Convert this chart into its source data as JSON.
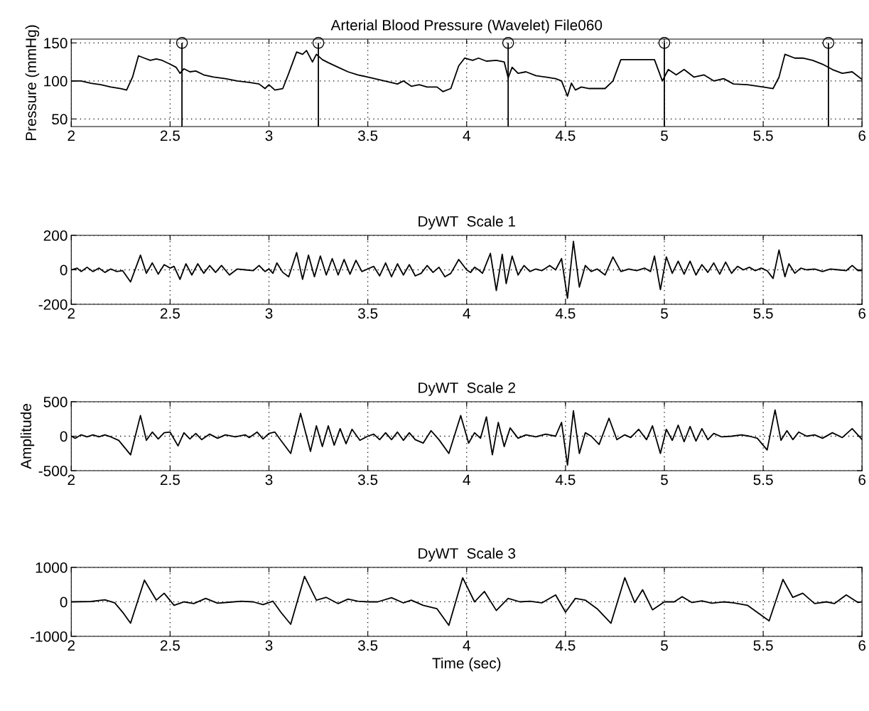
{
  "chart_data": [
    {
      "type": "line",
      "title": "Arterial Blood Pressure (Wavelet) File060",
      "ylabel": "Pressure (mmHg)",
      "xlim": [
        2,
        6
      ],
      "xticks": [
        2,
        2.5,
        3,
        3.5,
        4,
        4.5,
        5,
        5.5,
        6
      ],
      "ylim": [
        40,
        155
      ],
      "yticks": [
        50,
        100,
        150
      ],
      "grid": true,
      "legend": false,
      "series": [
        {
          "color": "#000000",
          "x": [
            2.0,
            2.05,
            2.1,
            2.15,
            2.2,
            2.25,
            2.28,
            2.31,
            2.34,
            2.37,
            2.4,
            2.43,
            2.46,
            2.5,
            2.53,
            2.55,
            2.57,
            2.6,
            2.63,
            2.67,
            2.72,
            2.78,
            2.84,
            2.9,
            2.95,
            2.98,
            3.0,
            3.03,
            3.07,
            3.1,
            3.14,
            3.17,
            3.19,
            3.22,
            3.24,
            3.27,
            3.3,
            3.35,
            3.4,
            3.45,
            3.5,
            3.55,
            3.6,
            3.65,
            3.68,
            3.72,
            3.76,
            3.8,
            3.85,
            3.88,
            3.92,
            3.96,
            3.99,
            4.03,
            4.06,
            4.1,
            4.15,
            4.19,
            4.21,
            4.23,
            4.26,
            4.3,
            4.35,
            4.4,
            4.45,
            4.48,
            4.51,
            4.53,
            4.55,
            4.58,
            4.62,
            4.7,
            4.74,
            4.78,
            4.85,
            4.95,
            4.99,
            5.02,
            5.06,
            5.1,
            5.15,
            5.2,
            5.25,
            5.3,
            5.35,
            5.42,
            5.5,
            5.55,
            5.58,
            5.61,
            5.66,
            5.7,
            5.75,
            5.8,
            5.85,
            5.9,
            5.95,
            6.0
          ],
          "values": [
            100,
            100,
            97,
            95,
            92,
            90,
            88,
            105,
            133,
            130,
            127,
            129,
            127,
            122,
            118,
            110,
            116,
            112,
            113,
            108,
            105,
            103,
            100,
            98,
            96,
            90,
            95,
            88,
            90,
            110,
            138,
            135,
            140,
            125,
            135,
            128,
            124,
            118,
            112,
            108,
            105,
            102,
            99,
            96,
            100,
            93,
            95,
            92,
            92,
            86,
            90,
            120,
            130,
            127,
            130,
            126,
            127,
            125,
            104,
            118,
            110,
            112,
            107,
            105,
            103,
            100,
            80,
            97,
            88,
            92,
            90,
            90,
            100,
            128,
            128,
            128,
            100,
            115,
            108,
            115,
            105,
            108,
            100,
            103,
            96,
            95,
            92,
            90,
            105,
            135,
            130,
            130,
            127,
            122,
            115,
            110,
            112,
            102
          ]
        },
        {
          "type": "lollipop",
          "color": "#000000",
          "marker": "circle",
          "x": [
            2.56,
            3.25,
            4.21,
            5.0,
            5.83
          ],
          "values": [
            150,
            150,
            150,
            150,
            150
          ]
        }
      ]
    },
    {
      "type": "line",
      "title": "DyWT  Scale 1",
      "xlim": [
        2,
        6
      ],
      "xticks": [
        2,
        2.5,
        3,
        3.5,
        4,
        4.5,
        5,
        5.5,
        6
      ],
      "ylim": [
        -200,
        200
      ],
      "yticks": [
        -200,
        0,
        200
      ],
      "grid": true,
      "legend": false,
      "series": [
        {
          "color": "#000000",
          "x": [
            2.0,
            2.03,
            2.05,
            2.08,
            2.11,
            2.14,
            2.17,
            2.2,
            2.23,
            2.26,
            2.3,
            2.35,
            2.38,
            2.41,
            2.44,
            2.47,
            2.5,
            2.52,
            2.55,
            2.58,
            2.61,
            2.64,
            2.67,
            2.7,
            2.73,
            2.76,
            2.8,
            2.84,
            2.88,
            2.92,
            2.95,
            2.98,
            3.0,
            3.02,
            3.04,
            3.07,
            3.1,
            3.14,
            3.17,
            3.2,
            3.23,
            3.26,
            3.29,
            3.32,
            3.35,
            3.38,
            3.41,
            3.44,
            3.47,
            3.5,
            3.53,
            3.56,
            3.59,
            3.62,
            3.65,
            3.68,
            3.71,
            3.74,
            3.77,
            3.8,
            3.83,
            3.86,
            3.89,
            3.92,
            3.96,
            4.0,
            4.02,
            4.04,
            4.06,
            4.08,
            4.12,
            4.15,
            4.18,
            4.2,
            4.23,
            4.26,
            4.29,
            4.32,
            4.35,
            4.38,
            4.42,
            4.45,
            4.48,
            4.51,
            4.54,
            4.57,
            4.6,
            4.63,
            4.66,
            4.7,
            4.74,
            4.78,
            4.82,
            4.86,
            4.9,
            4.93,
            4.95,
            4.98,
            5.01,
            5.04,
            5.07,
            5.1,
            5.13,
            5.16,
            5.19,
            5.22,
            5.25,
            5.28,
            5.31,
            5.34,
            5.37,
            5.4,
            5.43,
            5.46,
            5.49,
            5.52,
            5.55,
            5.58,
            5.61,
            5.63,
            5.66,
            5.69,
            5.72,
            5.76,
            5.8,
            5.84,
            5.88,
            5.92,
            5.95,
            5.98,
            6.0
          ],
          "values": [
            0,
            10,
            -10,
            15,
            -10,
            10,
            -15,
            5,
            -10,
            -5,
            -70,
            85,
            -20,
            40,
            -25,
            30,
            10,
            20,
            -55,
            35,
            -30,
            35,
            -20,
            25,
            -15,
            25,
            -30,
            5,
            0,
            -5,
            25,
            -10,
            5,
            -20,
            40,
            -15,
            -40,
            100,
            -55,
            85,
            -40,
            80,
            -30,
            65,
            -30,
            60,
            -25,
            55,
            -10,
            5,
            20,
            -35,
            40,
            -40,
            35,
            -30,
            30,
            -35,
            -20,
            25,
            -15,
            15,
            -40,
            -20,
            60,
            0,
            -15,
            15,
            0,
            -20,
            95,
            -120,
            90,
            -80,
            80,
            -30,
            25,
            -10,
            5,
            -5,
            25,
            0,
            65,
            -165,
            165,
            -100,
            25,
            -10,
            5,
            -30,
            75,
            -10,
            5,
            -5,
            10,
            -10,
            80,
            -115,
            75,
            -20,
            50,
            -25,
            50,
            -30,
            30,
            -15,
            40,
            -25,
            45,
            -20,
            20,
            0,
            15,
            -5,
            10,
            -5,
            -50,
            115,
            -40,
            35,
            -20,
            10,
            0,
            5,
            -10,
            5,
            0,
            -5,
            25,
            -5,
            -5
          ]
        }
      ]
    },
    {
      "type": "line",
      "title": "DyWT  Scale 2",
      "ylabel": "Amplitude",
      "xlim": [
        2,
        6
      ],
      "xticks": [
        2,
        2.5,
        3,
        3.5,
        4,
        4.5,
        5,
        5.5,
        6
      ],
      "ylim": [
        -500,
        500
      ],
      "yticks": [
        -500,
        0,
        500
      ],
      "grid": true,
      "legend": false,
      "series": [
        {
          "color": "#000000",
          "x": [
            2.0,
            2.02,
            2.05,
            2.08,
            2.11,
            2.14,
            2.17,
            2.2,
            2.24,
            2.3,
            2.35,
            2.38,
            2.41,
            2.44,
            2.47,
            2.5,
            2.54,
            2.57,
            2.6,
            2.63,
            2.66,
            2.7,
            2.74,
            2.78,
            2.83,
            2.88,
            2.9,
            2.94,
            2.97,
            3.0,
            3.03,
            3.06,
            3.11,
            3.16,
            3.21,
            3.24,
            3.27,
            3.3,
            3.33,
            3.36,
            3.39,
            3.42,
            3.46,
            3.5,
            3.53,
            3.56,
            3.59,
            3.62,
            3.65,
            3.68,
            3.71,
            3.74,
            3.78,
            3.82,
            3.86,
            3.91,
            3.97,
            4.01,
            4.04,
            4.07,
            4.1,
            4.13,
            4.16,
            4.19,
            4.22,
            4.26,
            4.3,
            4.35,
            4.4,
            4.45,
            4.48,
            4.51,
            4.54,
            4.57,
            4.6,
            4.63,
            4.67,
            4.72,
            4.76,
            4.8,
            4.83,
            4.87,
            4.91,
            4.94,
            4.98,
            5.01,
            5.04,
            5.07,
            5.1,
            5.13,
            5.16,
            5.19,
            5.22,
            5.25,
            5.29,
            5.34,
            5.39,
            5.43,
            5.47,
            5.52,
            5.56,
            5.59,
            5.62,
            5.65,
            5.68,
            5.72,
            5.76,
            5.8,
            5.85,
            5.9,
            5.95,
            6.0
          ],
          "values": [
            0,
            -30,
            20,
            -10,
            20,
            -10,
            20,
            -10,
            -60,
            -270,
            300,
            -60,
            60,
            -40,
            50,
            60,
            -140,
            50,
            -40,
            40,
            -50,
            30,
            -30,
            20,
            -10,
            20,
            -20,
            60,
            -40,
            40,
            60,
            -60,
            -250,
            330,
            -220,
            150,
            -150,
            150,
            -130,
            110,
            -110,
            100,
            -60,
            0,
            30,
            -50,
            50,
            -50,
            60,
            -60,
            50,
            -50,
            -100,
            80,
            -50,
            -250,
            300,
            -100,
            50,
            -30,
            280,
            -270,
            200,
            -150,
            120,
            -30,
            20,
            -10,
            30,
            0,
            200,
            -420,
            370,
            -250,
            50,
            0,
            -120,
            260,
            -50,
            20,
            -20,
            100,
            -50,
            150,
            -250,
            100,
            -60,
            160,
            -80,
            140,
            -70,
            110,
            -50,
            40,
            -10,
            0,
            20,
            0,
            -30,
            -200,
            380,
            -60,
            80,
            -50,
            60,
            0,
            20,
            -30,
            50,
            -20,
            110,
            -50
          ]
        }
      ]
    },
    {
      "type": "line",
      "title": "DyWT  Scale 3",
      "xlabel": "Time (sec)",
      "xlim": [
        2,
        6
      ],
      "xticks": [
        2,
        2.5,
        3,
        3.5,
        4,
        4.5,
        5,
        5.5,
        6
      ],
      "ylim": [
        -1000,
        1000
      ],
      "yticks": [
        -1000,
        0,
        1000
      ],
      "grid": true,
      "legend": false,
      "series": [
        {
          "color": "#000000",
          "x": [
            2.0,
            2.1,
            2.17,
            2.22,
            2.26,
            2.3,
            2.37,
            2.43,
            2.47,
            2.52,
            2.57,
            2.62,
            2.68,
            2.74,
            2.8,
            2.86,
            2.92,
            2.97,
            3.02,
            3.06,
            3.11,
            3.18,
            3.24,
            3.29,
            3.35,
            3.4,
            3.45,
            3.5,
            3.55,
            3.62,
            3.68,
            3.72,
            3.78,
            3.85,
            3.91,
            3.98,
            4.04,
            4.09,
            4.15,
            4.21,
            4.27,
            4.32,
            4.38,
            4.45,
            4.5,
            4.55,
            4.6,
            4.66,
            4.73,
            4.8,
            4.85,
            4.89,
            4.94,
            5.0,
            5.05,
            5.09,
            5.14,
            5.19,
            5.24,
            5.3,
            5.35,
            5.42,
            5.53,
            5.6,
            5.65,
            5.7,
            5.76,
            5.82,
            5.86,
            5.92,
            5.98,
            6.0
          ],
          "values": [
            0,
            10,
            60,
            -30,
            -300,
            -620,
            630,
            50,
            250,
            -100,
            0,
            -50,
            100,
            -40,
            -10,
            20,
            0,
            -80,
            20,
            -300,
            -650,
            740,
            50,
            130,
            -50,
            80,
            20,
            0,
            0,
            120,
            -30,
            50,
            -100,
            -200,
            -680,
            700,
            0,
            300,
            -250,
            100,
            0,
            20,
            -30,
            200,
            -300,
            100,
            50,
            -200,
            -620,
            700,
            -20,
            350,
            -230,
            0,
            0,
            150,
            -20,
            30,
            -40,
            0,
            -30,
            -100,
            -550,
            650,
            130,
            250,
            -50,
            0,
            -50,
            200,
            -20,
            0
          ]
        }
      ]
    }
  ]
}
